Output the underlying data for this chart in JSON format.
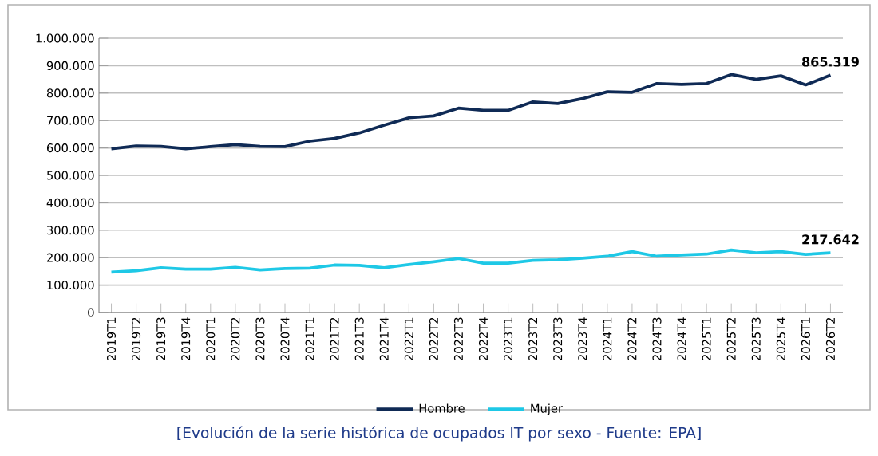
{
  "chart_data": {
    "type": "line",
    "categories": [
      "2019T1",
      "2019T2",
      "2019T3",
      "2019T4",
      "2020T1",
      "2020T2",
      "2020T3",
      "2020T4",
      "2021T1",
      "2021T2",
      "2021T3",
      "2021T4",
      "2022T1",
      "2022T2",
      "2022T3",
      "2022T4",
      "2023T1",
      "2023T2",
      "2023T3",
      "2023T4",
      "2024T1",
      "2024T2",
      "2024T3",
      "2024T4",
      "2025T1",
      "2025T2",
      "2025T3",
      "2025T4",
      "2026T1",
      "2026T2"
    ],
    "series": [
      {
        "name": "Hombre",
        "color": "#0f2a55",
        "values": [
          597000,
          607000,
          606000,
          597000,
          605000,
          612000,
          606000,
          605000,
          625000,
          635000,
          655000,
          683000,
          710000,
          717000,
          745000,
          737000,
          737000,
          768000,
          762000,
          780000,
          805000,
          803000,
          835000,
          832000,
          835000,
          868000,
          850000,
          863000,
          830000,
          865319
        ],
        "value_labels": [
          null,
          null,
          null,
          null,
          null,
          null,
          null,
          null,
          null,
          null,
          null,
          null,
          null,
          null,
          null,
          null,
          null,
          null,
          null,
          null,
          null,
          null,
          null,
          null,
          null,
          null,
          null,
          null,
          null,
          "865.319"
        ]
      },
      {
        "name": "Mujer",
        "color": "#1ec8e6",
        "values": [
          147000,
          152000,
          163000,
          158000,
          158000,
          165000,
          155000,
          160000,
          162000,
          173000,
          172000,
          163000,
          175000,
          185000,
          197000,
          180000,
          180000,
          190000,
          192000,
          198000,
          205000,
          222000,
          205000,
          210000,
          213000,
          228000,
          218000,
          222000,
          212000,
          217642
        ],
        "value_labels": [
          null,
          null,
          null,
          null,
          null,
          null,
          null,
          null,
          null,
          null,
          null,
          null,
          null,
          null,
          null,
          null,
          null,
          null,
          null,
          null,
          null,
          null,
          null,
          null,
          null,
          null,
          null,
          null,
          null,
          "217.642"
        ]
      }
    ],
    "ylim": [
      0,
      1000000
    ],
    "yticks": [
      0,
      {
        "value": 100000,
        "label": "100.000"
      },
      {
        "value": 200000,
        "label": "200.000"
      },
      {
        "value": 300000,
        "label": "300.000"
      },
      {
        "value": 400000,
        "label": "400.000"
      },
      {
        "value": 500000,
        "label": "500.000"
      },
      {
        "value": 600000,
        "label": "600.000"
      },
      {
        "value": 700000,
        "label": "700.000"
      },
      {
        "value": 800000,
        "label": "800.000"
      },
      {
        "value": 900000,
        "label": "900.000"
      },
      {
        "value": 1000000,
        "label": "1.000.000"
      }
    ],
    "grid": "y",
    "legend": "bottom",
    "annotations": [
      "[Evolución de la serie histórica de ocupados IT por sexo - Fuente: EPA]"
    ]
  }
}
